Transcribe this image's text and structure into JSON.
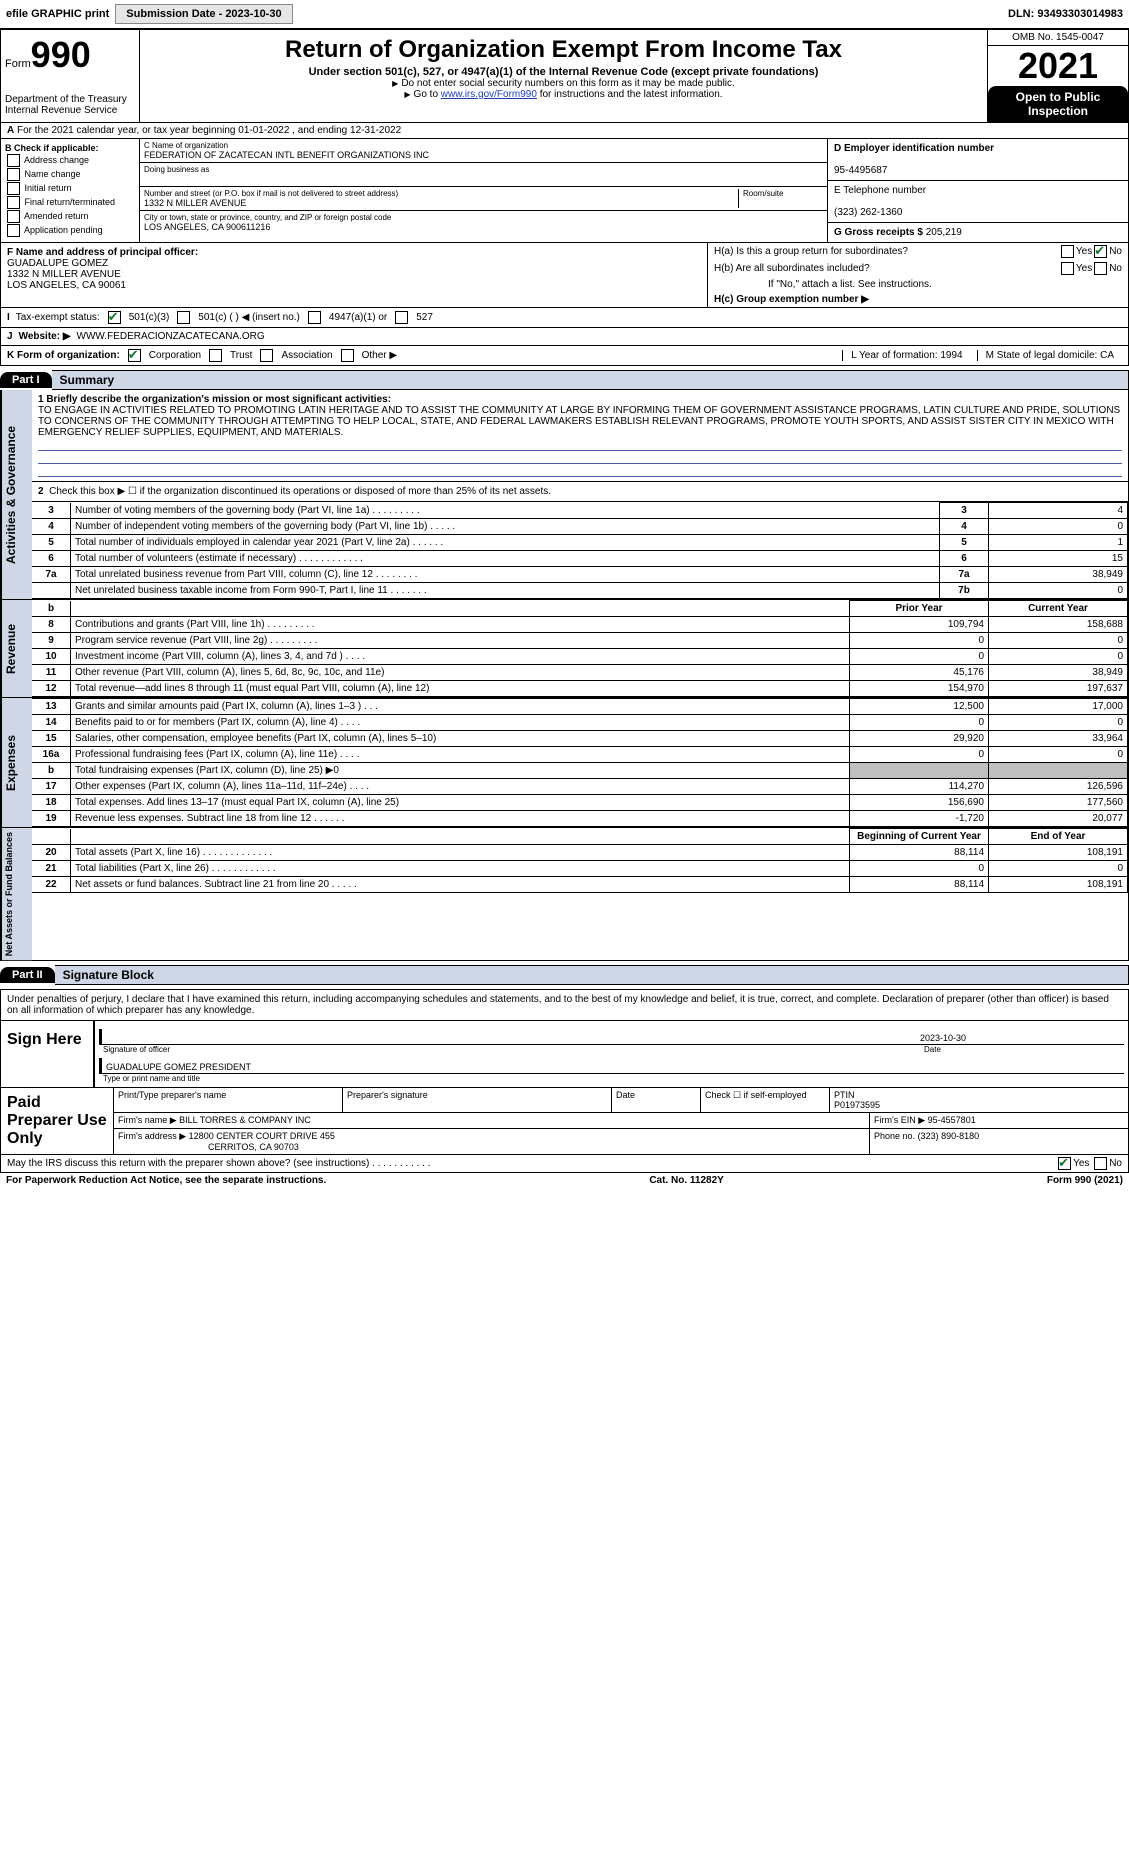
{
  "topbar": {
    "efile_label": "efile GRAPHIC print",
    "submission_label": "Submission Date - 2023-10-30",
    "dln": "DLN: 93493303014983"
  },
  "header": {
    "form_label": "Form",
    "form_number": "990",
    "dept": "Department of the Treasury\nInternal Revenue Service",
    "title": "Return of Organization Exempt From Income Tax",
    "sub": "Under section 501(c), 527, or 4947(a)(1) of the Internal Revenue Code (except private foundations)",
    "note1": "Do not enter social security numbers on this form as it may be made public.",
    "note2_pre": "Go to ",
    "note2_link": "www.irs.gov/Form990",
    "note2_post": " for instructions and the latest information.",
    "omb": "OMB No. 1545-0047",
    "year": "2021",
    "open": "Open to Public Inspection"
  },
  "row_a": "For the 2021 calendar year, or tax year beginning 01-01-2022   , and ending 12-31-2022",
  "box_b": {
    "title": "B Check if applicable:",
    "items": [
      "Address change",
      "Name change",
      "Initial return",
      "Final return/terminated",
      "Amended return",
      "Application pending"
    ]
  },
  "box_c": {
    "name_lbl": "C Name of organization",
    "name": "FEDERATION OF ZACATECAN INTL BENEFIT ORGANIZATIONS INC",
    "dba_lbl": "Doing business as",
    "street_lbl": "Number and street (or P.O. box if mail is not delivered to street address)",
    "street": "1332 N MILLER AVENUE",
    "room_lbl": "Room/suite",
    "city_lbl": "City or town, state or province, country, and ZIP or foreign postal code",
    "city": "LOS ANGELES, CA  900611216"
  },
  "box_d": {
    "lbl": "D Employer identification number",
    "val": "95-4495687"
  },
  "box_e": {
    "lbl": "E Telephone number",
    "val": "(323) 262-1360"
  },
  "box_g": {
    "lbl": "G Gross receipts $",
    "val": "205,219"
  },
  "box_f": {
    "lbl": "F  Name and address of principal officer:",
    "name": "GUADALUPE GOMEZ",
    "street": "1332 N MILLER AVENUE",
    "city": "LOS ANGELES, CA  90061"
  },
  "box_h": {
    "ha": "H(a)  Is this a group return for subordinates?",
    "hb": "H(b)  Are all subordinates included?",
    "hb_note": "If \"No,\" attach a list. See instructions.",
    "hc": "H(c)  Group exemption number ▶"
  },
  "row_i": "Tax-exempt status:",
  "row_i_opts": [
    "501(c)(3)",
    "501(c) (  ) ◀ (insert no.)",
    "4947(a)(1) or",
    "527"
  ],
  "row_j": {
    "lbl": "Website: ▶",
    "val": "WWW.FEDERACIONZACATECANA.ORG"
  },
  "row_k": {
    "lbl": "K Form of organization:",
    "opts": [
      "Corporation",
      "Trust",
      "Association",
      "Other ▶"
    ]
  },
  "row_l": "L Year of formation: 1994",
  "row_m": "M State of legal domicile: CA",
  "part1": {
    "tab": "Part I",
    "title": "Summary"
  },
  "mission": {
    "lbl": "1  Briefly describe the organization's mission or most significant activities:",
    "text": "TO ENGAGE IN ACTIVITIES RELATED TO PROMOTING LATIN HERITAGE AND TO ASSIST THE COMMUNITY AT LARGE BY INFORMING THEM OF GOVERNMENT ASSISTANCE PROGRAMS, LATIN CULTURE AND PRIDE, SOLUTIONS TO CONCERNS OF THE COMMUNITY THROUGH ATTEMPTING TO HELP LOCAL, STATE, AND FEDERAL LAWMAKERS ESTABLISH RELEVANT PROGRAMS, PROMOTE YOUTH SPORTS, AND ASSIST SISTER CITY IN MEXICO WITH EMERGENCY RELIEF SUPPLIES, EQUIPMENT, AND MATERIALS."
  },
  "gov": {
    "l2": "Check this box ▶ ☐  if the organization discontinued its operations or disposed of more than 25% of its net assets.",
    "rows": [
      {
        "n": "3",
        "t": "Number of voting members of the governing body (Part VI, line 1a)   .    .    .    .    .    .    .    .    .",
        "k": "3",
        "v": "4"
      },
      {
        "n": "4",
        "t": "Number of independent voting members of the governing body (Part VI, line 1b)    .    .    .    .    .",
        "k": "4",
        "v": "0"
      },
      {
        "n": "5",
        "t": "Total number of individuals employed in calendar year 2021 (Part V, line 2a)    .    .    .    .    .    .",
        "k": "5",
        "v": "1"
      },
      {
        "n": "6",
        "t": "Total number of volunteers (estimate if necessary)   .    .    .    .    .    .    .    .    .    .    .    .",
        "k": "6",
        "v": "15"
      },
      {
        "n": "7a",
        "t": "Total unrelated business revenue from Part VIII, column (C), line 12    .    .    .    .    .    .    .    .",
        "k": "7a",
        "v": "38,949"
      },
      {
        "n": "",
        "t": "Net unrelated business taxable income from Form 990-T, Part I, line 11    .    .    .    .    .    .    .",
        "k": "7b",
        "v": "0"
      }
    ]
  },
  "rev": {
    "hdr_prior": "Prior Year",
    "hdr_curr": "Current Year",
    "rows": [
      {
        "n": "8",
        "t": "Contributions and grants (Part VIII, line 1h)   .    .    .    .    .    .    .    .    .",
        "p": "109,794",
        "c": "158,688"
      },
      {
        "n": "9",
        "t": "Program service revenue (Part VIII, line 2g)   .    .    .    .    .    .    .    .    .",
        "p": "0",
        "c": "0"
      },
      {
        "n": "10",
        "t": "Investment income (Part VIII, column (A), lines 3, 4, and 7d )    .    .    .    .",
        "p": "0",
        "c": "0"
      },
      {
        "n": "11",
        "t": "Other revenue (Part VIII, column (A), lines 5, 6d, 8c, 9c, 10c, and 11e)",
        "p": "45,176",
        "c": "38,949"
      },
      {
        "n": "12",
        "t": "Total revenue—add lines 8 through 11 (must equal Part VIII, column (A), line 12)",
        "p": "154,970",
        "c": "197,637"
      }
    ]
  },
  "exp": {
    "rows": [
      {
        "n": "13",
        "t": "Grants and similar amounts paid (Part IX, column (A), lines 1–3 )   .    .    .",
        "p": "12,500",
        "c": "17,000"
      },
      {
        "n": "14",
        "t": "Benefits paid to or for members (Part IX, column (A), line 4)   .    .    .    .",
        "p": "0",
        "c": "0"
      },
      {
        "n": "15",
        "t": "Salaries, other compensation, employee benefits (Part IX, column (A), lines 5–10)",
        "p": "29,920",
        "c": "33,964"
      },
      {
        "n": "16a",
        "t": "Professional fundraising fees (Part IX, column (A), line 11e)   .    .    .    .",
        "p": "0",
        "c": "0"
      },
      {
        "n": "b",
        "t": "Total fundraising expenses (Part IX, column (D), line 25) ▶0",
        "p": "",
        "c": "",
        "shade": true
      },
      {
        "n": "17",
        "t": "Other expenses (Part IX, column (A), lines 11a–11d, 11f–24e)   .    .    .    .",
        "p": "114,270",
        "c": "126,596"
      },
      {
        "n": "18",
        "t": "Total expenses. Add lines 13–17 (must equal Part IX, column (A), line 25)",
        "p": "156,690",
        "c": "177,560"
      },
      {
        "n": "19",
        "t": "Revenue less expenses. Subtract line 18 from line 12   .    .    .    .    .    .",
        "p": "-1,720",
        "c": "20,077"
      }
    ]
  },
  "net": {
    "hdr_beg": "Beginning of Current Year",
    "hdr_end": "End of Year",
    "rows": [
      {
        "n": "20",
        "t": "Total assets (Part X, line 16)   .    .    .    .    .    .    .    .    .    .    .    .    .",
        "p": "88,114",
        "c": "108,191"
      },
      {
        "n": "21",
        "t": "Total liabilities (Part X, line 26)   .    .    .    .    .    .    .    .    .    .    .    .",
        "p": "0",
        "c": "0"
      },
      {
        "n": "22",
        "t": "Net assets or fund balances. Subtract line 21 from line 20   .    .    .    .    .",
        "p": "88,114",
        "c": "108,191"
      }
    ]
  },
  "part2": {
    "tab": "Part II",
    "title": "Signature Block"
  },
  "sig": {
    "decl": "Under penalties of perjury, I declare that I have examined this return, including accompanying schedules and statements, and to the best of my knowledge and belief, it is true, correct, and complete. Declaration of preparer (other than officer) is based on all information of which preparer has any knowledge.",
    "sign_here": "Sign Here",
    "sig_officer": "Signature of officer",
    "date": "2023-10-30",
    "date_lbl": "Date",
    "name": "GUADALUPE GOMEZ PRESIDENT",
    "name_lbl": "Type or print name and title"
  },
  "prep": {
    "label": "Paid Preparer Use Only",
    "h1": "Print/Type preparer's name",
    "h2": "Preparer's signature",
    "h3": "Date",
    "h4_pre": "Check ☐ if self-employed",
    "ptin_lbl": "PTIN",
    "ptin": "P01973595",
    "firm_lbl": "Firm's name   ▶",
    "firm": "BILL TORRES & COMPANY INC",
    "ein_lbl": "Firm's EIN ▶",
    "ein": "95-4557801",
    "addr_lbl": "Firm's address ▶",
    "addr1": "12800 CENTER COURT DRIVE 455",
    "addr2": "CERRITOS, CA  90703",
    "phone_lbl": "Phone no.",
    "phone": "(323) 890-8180"
  },
  "footer": {
    "discuss": "May the IRS discuss this return with the preparer shown above? (see instructions)   .    .    .    .    .    .    .    .    .    .    .",
    "pra": "For Paperwork Reduction Act Notice, see the separate instructions.",
    "cat": "Cat. No. 11282Y",
    "form": "Form 990 (2021)"
  }
}
